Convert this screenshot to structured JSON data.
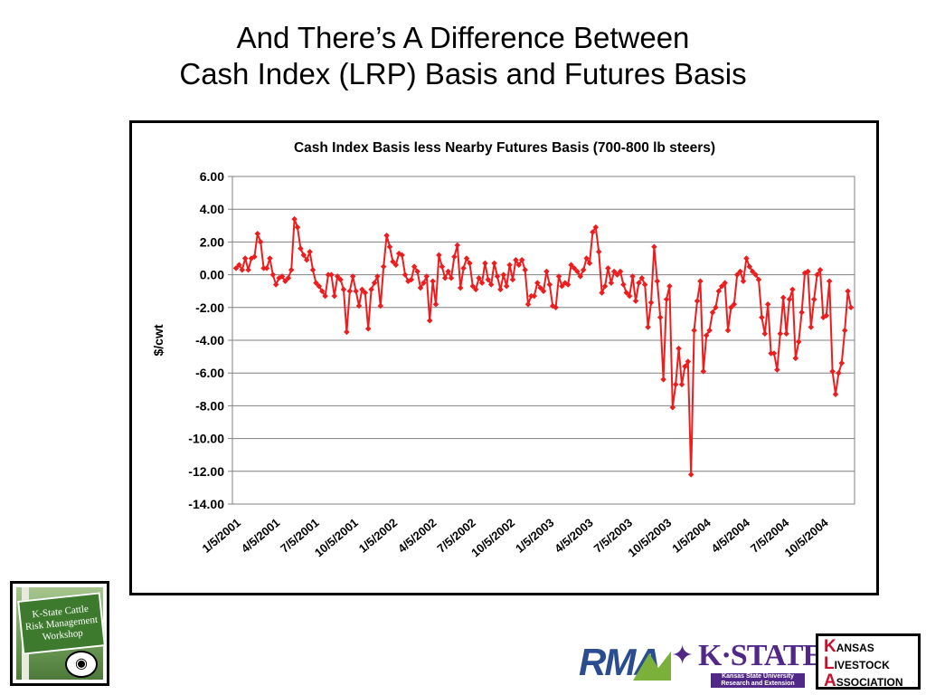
{
  "slide": {
    "title_line1": "And There’s A Difference Between",
    "title_line2": "Cash Index (LRP) Basis and Futures Basis"
  },
  "chart_data": {
    "type": "line",
    "title": "Cash Index Basis less Nearby Futures Basis (700-800 lb steers)",
    "xlabel": "",
    "ylabel": "$/cwt",
    "ylim": [
      -14,
      6
    ],
    "ytick_step": 2,
    "ytick_labels": [
      "6.00",
      "4.00",
      "2.00",
      "0.00",
      "-2.00",
      "-4.00",
      "-6.00",
      "-8.00",
      "-10.00",
      "-12.00",
      "-14.00"
    ],
    "xtick_labels": [
      "1/5/2001",
      "4/5/2001",
      "7/5/2001",
      "10/5/2001",
      "1/5/2002",
      "4/5/2002",
      "7/5/2002",
      "10/5/2002",
      "1/5/2003",
      "4/5/2003",
      "7/5/2003",
      "10/5/2003",
      "1/5/2004",
      "4/5/2004",
      "7/5/2004",
      "10/5/2004"
    ],
    "grid": true,
    "legend": "none",
    "series": [
      {
        "color": "#ee1c1c",
        "x_start": "2001-01-05",
        "x_interval": "weekly",
        "values": [
          0.4,
          0.6,
          0.3,
          1.0,
          0.3,
          1.0,
          1.1,
          2.5,
          2.0,
          0.4,
          0.4,
          1.0,
          0.0,
          -0.6,
          -0.2,
          -0.1,
          -0.4,
          -0.2,
          0.3,
          3.4,
          2.9,
          1.6,
          1.2,
          0.9,
          1.4,
          0.3,
          -0.5,
          -0.7,
          -1.0,
          -1.3,
          0.0,
          0.0,
          -1.3,
          -0.1,
          -0.3,
          -0.9,
          -3.5,
          -1.0,
          -0.1,
          -1.0,
          -1.9,
          -0.9,
          -1.1,
          -3.3,
          -0.9,
          -0.5,
          -0.1,
          -1.9,
          0.5,
          2.4,
          1.7,
          0.8,
          0.6,
          1.3,
          1.2,
          0.0,
          -0.4,
          -0.3,
          0.5,
          0.2,
          -0.8,
          -0.5,
          -0.1,
          -2.8,
          -0.4,
          -1.8,
          1.2,
          0.5,
          -0.2,
          0.2,
          -0.2,
          1.1,
          1.8,
          -0.8,
          0.4,
          1.0,
          0.7,
          -0.7,
          -0.9,
          -0.2,
          -0.5,
          0.7,
          -0.3,
          -0.6,
          0.7,
          -0.1,
          -0.9,
          0.0,
          -0.7,
          0.6,
          -0.3,
          0.9,
          0.6,
          0.9,
          0.3,
          -1.8,
          -1.3,
          -1.3,
          -0.5,
          -0.8,
          -1.0,
          0.2,
          -0.6,
          -1.9,
          -2.0,
          -0.1,
          -0.7,
          -0.5,
          -0.6,
          0.6,
          0.4,
          0.2,
          -0.1,
          0.3,
          1.0,
          0.7,
          2.6,
          2.9,
          1.4,
          -1.1,
          -0.7,
          0.4,
          -0.5,
          0.2,
          0.0,
          0.2,
          -0.6,
          -1.1,
          -1.3,
          -0.1,
          -1.6,
          -0.5,
          -0.2,
          -0.6,
          -3.2,
          -1.7,
          1.7,
          -0.4,
          -2.6,
          -6.4,
          -1.5,
          -0.7,
          -8.1,
          -6.7,
          -4.5,
          -6.7,
          -5.6,
          -5.3,
          -12.2,
          -3.4,
          -1.6,
          -0.4,
          -5.9,
          -3.7,
          -3.4,
          -2.3,
          -2.0,
          -1.0,
          -0.7,
          -0.5,
          -3.4,
          -2.0,
          -1.8,
          0.0,
          0.2,
          -0.4,
          1.0,
          0.5,
          0.2,
          0.0,
          -0.3,
          -2.6,
          -3.6,
          -1.8,
          -4.8,
          -4.8,
          -5.8,
          -3.6,
          -1.4,
          -3.6,
          -1.5,
          -0.9,
          -5.1,
          -4.1,
          -2.3,
          0.1,
          0.2,
          -3.2,
          -1.5,
          0.0,
          0.3,
          -2.6,
          -2.5,
          -0.4,
          -5.9,
          -7.3,
          -6.0,
          -5.4,
          -3.4,
          -1.0,
          -2.0
        ]
      }
    ]
  },
  "logos": {
    "workshop_line1": "K-State Cattle",
    "workshop_line2": "Risk Management",
    "workshop_line3": "Workshop",
    "workshop_badge_icon": "cow-icon",
    "rma_text": "RMA",
    "kstate_text": "K·STATE",
    "kstate_sub1": "Kansas State University",
    "kstate_sub2": "Research and Extension",
    "kla_line1_cap": "K",
    "kla_line1_rest": "ANSAS",
    "kla_line2_cap": "L",
    "kla_line2_rest": "IVESTOCK",
    "kla_line3_cap": "A",
    "kla_line3_rest": "SSOCIATION"
  }
}
